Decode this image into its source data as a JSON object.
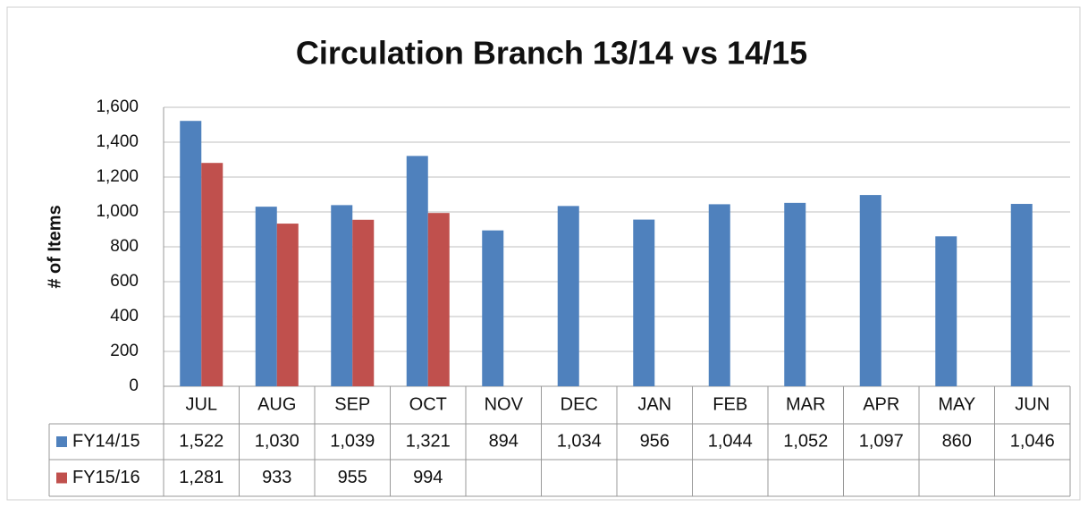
{
  "chart_data": {
    "type": "bar",
    "title": "Circulation Branch 13/14 vs 14/15",
    "y_label": "# of Items",
    "categories": [
      "JUL",
      "AUG",
      "SEP",
      "OCT",
      "NOV",
      "DEC",
      "JAN",
      "FEB",
      "MAR",
      "APR",
      "MAY",
      "JUN"
    ],
    "series": [
      {
        "name": "FY14/15",
        "color": "#4f81bd",
        "values": [
          1522,
          1030,
          1039,
          1321,
          894,
          1034,
          956,
          1044,
          1052,
          1097,
          860,
          1046
        ],
        "value_labels": [
          "1,522",
          "1,030",
          "1,039",
          "1,321",
          "894",
          "1,034",
          "956",
          "1,044",
          "1,052",
          "1,097",
          "860",
          "1,046"
        ]
      },
      {
        "name": "FY15/16",
        "color": "#c0504d",
        "values": [
          1281,
          933,
          955,
          994,
          null,
          null,
          null,
          null,
          null,
          null,
          null,
          null
        ],
        "value_labels": [
          "1,281",
          "933",
          "955",
          "994",
          null,
          null,
          null,
          null,
          null,
          null,
          null,
          null
        ]
      }
    ],
    "ylim": [
      0,
      1600
    ],
    "yticks": [
      0,
      200,
      400,
      600,
      800,
      {
        "value": 1000,
        "label": "1,000"
      },
      {
        "value": 1200,
        "label": "1,200"
      },
      {
        "value": 1400,
        "label": "1,400"
      },
      {
        "value": 1600,
        "label": "1,600"
      }
    ],
    "grid": true
  }
}
